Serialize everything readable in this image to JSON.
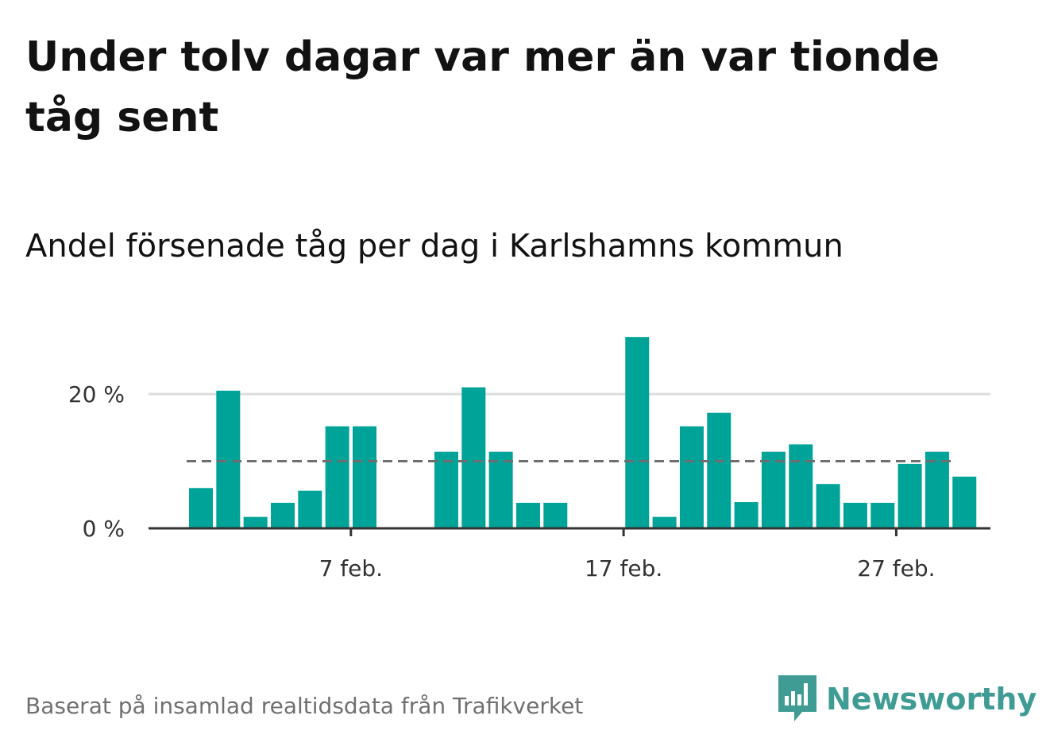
{
  "title": "Under tolv dagar var mer än var tionde tåg sent",
  "subtitle": "Andel försenade tåg per dag i Karlshamns kommun",
  "footer": "Baserat på insamlad realtidsdata från Trafikverket",
  "brand": {
    "name": "Newsworthy",
    "icon": "bar-chart-speech-bubble-icon",
    "color": "#3f9c94"
  },
  "colors": {
    "bar": "#00a398",
    "reference_line": "#6e6e6e",
    "grid": "#dddddd",
    "axis": "#333333"
  },
  "chart_data": {
    "type": "bar",
    "x": [
      "2024-02-01",
      "2024-02-02",
      "2024-02-03",
      "2024-02-04",
      "2024-02-05",
      "2024-02-06",
      "2024-02-07",
      "2024-02-08",
      "2024-02-09",
      "2024-02-10",
      "2024-02-11",
      "2024-02-12",
      "2024-02-13",
      "2024-02-14",
      "2024-02-15",
      "2024-02-16",
      "2024-02-17",
      "2024-02-18",
      "2024-02-19",
      "2024-02-20",
      "2024-02-21",
      "2024-02-22",
      "2024-02-23",
      "2024-02-24",
      "2024-02-25",
      "2024-02-26",
      "2024-02-27",
      "2024-02-28",
      "2024-02-29"
    ],
    "values": [
      6,
      20.5,
      1.7,
      3.8,
      5.6,
      15.2,
      15.2,
      0,
      0,
      11.4,
      21,
      11.4,
      3.8,
      3.8,
      0,
      0,
      28.5,
      1.7,
      15.2,
      17.2,
      3.9,
      11.4,
      12.5,
      6.6,
      3.8,
      3.8,
      9.6,
      11.4,
      7.7
    ],
    "reference_line": 10,
    "ylim": [
      0,
      30
    ],
    "y_ticks": [
      0,
      20
    ],
    "y_tick_labels": [
      "0 %",
      "20 %"
    ],
    "x_ticks": [
      "2024-02-07",
      "2024-02-17",
      "2024-02-27"
    ],
    "x_tick_labels": [
      "7 feb.",
      "17 feb.",
      "27 feb."
    ],
    "grid": true,
    "legend": "none",
    "xlabel": "",
    "ylabel": ""
  }
}
